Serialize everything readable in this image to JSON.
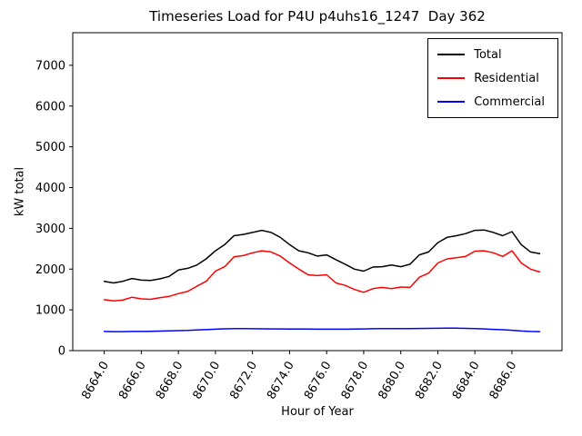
{
  "chart_data": {
    "type": "line",
    "title": "Timeseries Load for P4U p4uhs16_1247  Day 362",
    "xlabel": "Hour of Year",
    "ylabel": "kW total",
    "xlim": [
      8662.3,
      8688.7
    ],
    "ylim": [
      0,
      7800
    ],
    "grid": false,
    "legend_position": "upper right",
    "xticks": [
      8664,
      8666,
      8668,
      8670,
      8672,
      8674,
      8676,
      8678,
      8680,
      8682,
      8684,
      8686
    ],
    "xtick_labels": [
      "8664.0",
      "8666.0",
      "8668.0",
      "8670.0",
      "8672.0",
      "8674.0",
      "8676.0",
      "8678.0",
      "8680.0",
      "8682.0",
      "8684.0",
      "8686.0"
    ],
    "yticks": [
      0,
      1000,
      2000,
      3000,
      4000,
      5000,
      6000,
      7000
    ],
    "ytick_labels": [
      "0",
      "1000",
      "2000",
      "3000",
      "4000",
      "5000",
      "6000",
      "7000"
    ],
    "x": [
      8664.0,
      8664.5,
      8665.0,
      8665.5,
      8666.0,
      8666.5,
      8667.0,
      8667.5,
      8668.0,
      8668.5,
      8669.0,
      8669.5,
      8670.0,
      8670.5,
      8671.0,
      8671.5,
      8672.0,
      8672.5,
      8673.0,
      8673.5,
      8674.0,
      8674.5,
      8675.0,
      8675.5,
      8676.0,
      8676.5,
      8677.0,
      8677.5,
      8678.0,
      8678.5,
      8679.0,
      8679.5,
      8680.0,
      8680.5,
      8681.0,
      8681.5,
      8682.0,
      8682.5,
      8683.0,
      8683.5,
      8684.0,
      8684.5,
      8685.0,
      8685.5,
      8686.0,
      8686.5,
      8687.0,
      8687.5
    ],
    "series": [
      {
        "name": "Total",
        "color": "#000000",
        "values": [
          1700,
          1660,
          1700,
          1770,
          1730,
          1720,
          1760,
          1820,
          1980,
          2020,
          2100,
          2250,
          2450,
          2600,
          2820,
          2850,
          2900,
          2950,
          2900,
          2780,
          2600,
          2450,
          2400,
          2320,
          2350,
          2230,
          2120,
          2000,
          1950,
          2050,
          2060,
          2100,
          2060,
          2120,
          2350,
          2420,
          2650,
          2780,
          2820,
          2870,
          2950,
          2960,
          2900,
          2820,
          2920,
          2600,
          2420,
          2380
        ]
      },
      {
        "name": "Residential",
        "color": "#ff0000",
        "values": [
          1250,
          1220,
          1240,
          1310,
          1270,
          1260,
          1300,
          1330,
          1400,
          1450,
          1580,
          1700,
          1950,
          2060,
          2300,
          2330,
          2400,
          2450,
          2420,
          2320,
          2150,
          2000,
          1860,
          1840,
          1860,
          1660,
          1600,
          1500,
          1430,
          1520,
          1550,
          1520,
          1560,
          1550,
          1800,
          1900,
          2150,
          2250,
          2280,
          2310,
          2440,
          2450,
          2400,
          2310,
          2450,
          2150,
          2000,
          1930
        ]
      },
      {
        "name": "Commercial",
        "color": "#0000ff",
        "values": [
          470,
          465,
          465,
          470,
          470,
          475,
          480,
          485,
          490,
          495,
          505,
          515,
          525,
          535,
          540,
          540,
          538,
          535,
          533,
          532,
          530,
          530,
          528,
          527,
          525,
          525,
          525,
          528,
          532,
          536,
          540,
          540,
          542,
          542,
          543,
          545,
          548,
          550,
          550,
          546,
          540,
          532,
          522,
          512,
          500,
          482,
          470,
          465
        ]
      }
    ]
  }
}
